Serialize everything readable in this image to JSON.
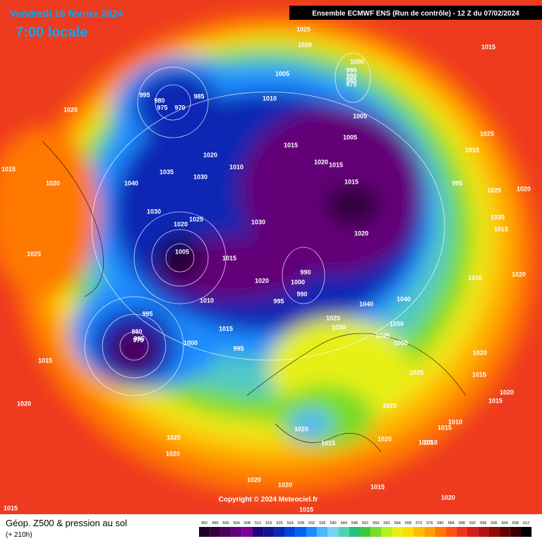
{
  "header": {
    "date": "Vendredi 16 février 2024",
    "time": "7:00 locale",
    "run": "Ensemble ECMWF ENS  (Run de contrôle)  -  12 Z du 07/02/2024"
  },
  "copyright": "Copyright © 2024 Meteociel.fr",
  "footer": {
    "title": "Géop. Z500 & pression au sol",
    "lead": "(+ 210h)"
  },
  "legend": {
    "levels": [
      492,
      496,
      500,
      504,
      508,
      512,
      516,
      520,
      524,
      528,
      532,
      536,
      540,
      544,
      548,
      552,
      556,
      560,
      564,
      568,
      572,
      576,
      580,
      584,
      588,
      592,
      596,
      600,
      604,
      608,
      612
    ],
    "colors": [
      "#1e0028",
      "#32003c",
      "#4b0059",
      "#640078",
      "#7d0096",
      "#1a0a78",
      "#14148c",
      "#0a28b4",
      "#0046dc",
      "#0064f0",
      "#1e8cff",
      "#50b4ff",
      "#78d2f0",
      "#50d2b4",
      "#28be78",
      "#3cc83c",
      "#78dc28",
      "#b4f01e",
      "#e6f014",
      "#ffdc00",
      "#ffbe00",
      "#ffa000",
      "#ff7800",
      "#ff5014",
      "#f0321e",
      "#d21e1e",
      "#b41414",
      "#8c0a0a",
      "#640505",
      "#3c0000",
      "#000000"
    ]
  },
  "pressure_labels": [
    1025,
    1020,
    1015,
    1000,
    995,
    990,
    985,
    975,
    1005,
    1010,
    995,
    980,
    975,
    970,
    985,
    1020,
    1015,
    1005,
    1020,
    1015,
    1015,
    1005,
    1020,
    1010,
    1040,
    1035,
    1030,
    1030,
    1025,
    1020,
    1025,
    1020,
    1015,
    1005,
    1015,
    1030,
    1025,
    1015,
    1020,
    990,
    1000,
    990,
    995,
    1020,
    1010,
    1040,
    1040,
    1025,
    1050,
    1045,
    1050,
    1030,
    995,
    985,
    975,
    980,
    995,
    1000,
    1015,
    1015,
    1020,
    1025,
    1020,
    1020,
    1020,
    1015,
    1015,
    1015,
    1020,
    1020,
    1015,
    1020,
    1015,
    1010,
    1015,
    1010,
    1025,
    1020,
    1015,
    1020,
    1015,
    1025,
    995,
    1025,
    1020,
    1015,
    1030,
    1010,
    1020
  ]
}
